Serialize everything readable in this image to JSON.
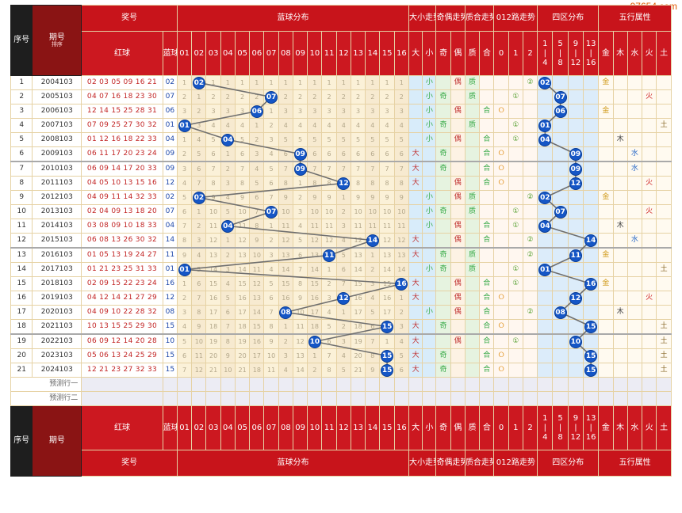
{
  "watermark": "97654.com",
  "header": {
    "seq": "序号",
    "period": "期号",
    "sort": "排序",
    "prize": "奖号",
    "red": "红球",
    "blue": "蓝球",
    "blue_dist": "蓝球分布",
    "bigsmall": "大小走势",
    "oddeven": "奇偶走势",
    "primecomp": "质合走势",
    "road012": "012路走势",
    "zone4": "四区分布",
    "wuxing": "五行属性",
    "blue_nums": [
      "01",
      "02",
      "03",
      "04",
      "05",
      "06",
      "07",
      "08",
      "09",
      "10",
      "11",
      "12",
      "13",
      "14",
      "15",
      "16"
    ],
    "bs": [
      "大",
      "小"
    ],
    "oe": [
      "奇",
      "偶"
    ],
    "pc": [
      "质",
      "合"
    ],
    "r012": [
      "0",
      "1",
      "2"
    ],
    "zones": [
      [
        "1",
        "|",
        "4"
      ],
      [
        "5",
        "|",
        "8"
      ],
      [
        "9",
        "|",
        "12"
      ],
      [
        "13",
        "|",
        "16"
      ]
    ],
    "wx": [
      "金",
      "木",
      "水",
      "火",
      "土"
    ]
  },
  "rows": [
    {
      "seq": "1",
      "period": "2004103",
      "red": "02 03 05 09 16 21",
      "blue": "02"
    },
    {
      "seq": "2",
      "period": "2005103",
      "red": "04 07 16 18 23 30",
      "blue": "07"
    },
    {
      "seq": "3",
      "period": "2006103",
      "red": "12 14 15 25 28 31",
      "blue": "06"
    },
    {
      "seq": "4",
      "period": "2007103",
      "red": "07 09 25 27 30 32",
      "blue": "01"
    },
    {
      "seq": "5",
      "period": "2008103",
      "red": "01 12 16 18 22 33",
      "blue": "04"
    },
    {
      "seq": "6",
      "period": "2009103",
      "red": "06 11 17 20 23 24",
      "blue": "09"
    },
    {
      "seq": "7",
      "period": "2010103",
      "red": "06 09 14 17 20 33",
      "blue": "09"
    },
    {
      "seq": "8",
      "period": "2011103",
      "red": "04 05 10 13 15 16",
      "blue": "12"
    },
    {
      "seq": "9",
      "period": "2012103",
      "red": "04 09 11 14 32 33",
      "blue": "02"
    },
    {
      "seq": "10",
      "period": "2013103",
      "red": "02 04 09 13 18 20",
      "blue": "07"
    },
    {
      "seq": "11",
      "period": "2014103",
      "red": "03 08 09 10 18 33",
      "blue": "04"
    },
    {
      "seq": "12",
      "period": "2015103",
      "red": "06 08 13 26 30 32",
      "blue": "14"
    },
    {
      "seq": "13",
      "period": "2016103",
      "red": "01 05 13 19 24 27",
      "blue": "11"
    },
    {
      "seq": "14",
      "period": "2017103",
      "red": "01 21 23 25 31 33",
      "blue": "01"
    },
    {
      "seq": "15",
      "period": "2018103",
      "red": "02 09 15 22 23 24",
      "blue": "16"
    },
    {
      "seq": "16",
      "period": "2019103",
      "red": "04 12 14 21 27 29",
      "blue": "12"
    },
    {
      "seq": "17",
      "period": "2020103",
      "red": "04 09 10 22 28 32",
      "blue": "08"
    },
    {
      "seq": "18",
      "period": "2021103",
      "red": "10 13 15 25 29 30",
      "blue": "15"
    },
    {
      "seq": "19",
      "period": "2022103",
      "red": "06 09 12 14 20 28",
      "blue": "10"
    },
    {
      "seq": "20",
      "period": "2023103",
      "red": "05 06 13 24 25 29",
      "blue": "15"
    },
    {
      "seq": "21",
      "period": "2024103",
      "red": "12 21 23 27 32 33",
      "blue": "15"
    }
  ],
  "predict": [
    "预测行一",
    "预测行二"
  ]
}
